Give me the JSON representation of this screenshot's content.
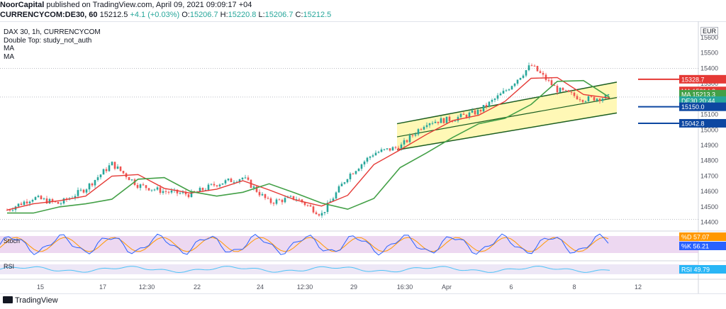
{
  "header": {
    "publisher": "NoorCapital",
    "published_text": "published on TradingView.com, April 09, 2021 09:09:17 +04",
    "symbol_line": "CURRENCYCOM:DE30, 60",
    "price": "15212.5",
    "change": "+4.1 (+0.03%)",
    "o_label": "O:",
    "o": "15206.7",
    "h_label": "H:",
    "h": "15220.8",
    "l_label": "L:",
    "l": "15206.7",
    "c_label": "C:",
    "c": "15212.5"
  },
  "legend": {
    "title": "DAX 30, 1h, CURRENCYCOM",
    "study": "Double Top: study_not_auth",
    "ma1": "MA",
    "ma2": "MA"
  },
  "currency": "EUR",
  "footer": {
    "brand": "TradingView"
  },
  "colors": {
    "up": "#26a69a",
    "down": "#ef5350",
    "ma_fast": "#e53935",
    "ma_slow": "#43a047",
    "channel_fill": "#fff59d",
    "channel_line": "#1b5e20",
    "level_red": "#e53935",
    "level_blue": "#0d47a1",
    "stoch_bg": "#e1bee7",
    "stoch_k": "#2962ff",
    "stoch_d": "#ff9800",
    "rsi_bg": "#ede7f6",
    "rsi_line": "#4fc3f7"
  },
  "chart_data": {
    "type": "candlestick",
    "title": "DAX 30, 1h, CURRENCYCOM",
    "y_axis": {
      "min": 14380,
      "max": 15650,
      "ticks": [
        "15600",
        "15500",
        "15400",
        "15300",
        "15200",
        "15100",
        "15000",
        "14900",
        "14800",
        "14700",
        "14600",
        "14500",
        "14400"
      ]
    },
    "x_axis": {
      "ticks": [
        "15",
        "17",
        "12:30",
        "22",
        "24",
        "12:30",
        "29",
        "16:30",
        "Apr",
        "6",
        "8",
        "12"
      ]
    },
    "price_points": [
      {
        "t": "15",
        "v": 14480
      },
      {
        "t": "16",
        "v": 14560
      },
      {
        "t": "17",
        "v": 14520
      },
      {
        "t": "18",
        "v": 14620
      },
      {
        "t": "19",
        "v": 14780
      },
      {
        "t": "20",
        "v": 14640
      },
      {
        "t": "21",
        "v": 14600
      },
      {
        "t": "22",
        "v": 14580
      },
      {
        "t": "23",
        "v": 14650
      },
      {
        "t": "24",
        "v": 14690
      },
      {
        "t": "25",
        "v": 14530
      },
      {
        "t": "26",
        "v": 14560
      },
      {
        "t": "27",
        "v": 14450
      },
      {
        "t": "28",
        "v": 14700
      },
      {
        "t": "29",
        "v": 14850
      },
      {
        "t": "30",
        "v": 14890
      },
      {
        "t": "31",
        "v": 15050
      },
      {
        "t": "Apr",
        "v": 15070
      },
      {
        "t": "2",
        "v": 15120
      },
      {
        "t": "3",
        "v": 15250
      },
      {
        "t": "6",
        "v": 15420
      },
      {
        "t": "7",
        "v": 15260
      },
      {
        "t": "8",
        "v": 15200
      },
      {
        "t": "9",
        "v": 15212.5
      }
    ],
    "levels": [
      {
        "label": "15328.7",
        "value": 15328.7,
        "kind": "resistance"
      },
      {
        "label": "15150.0",
        "value": 15150.0,
        "kind": "support"
      },
      {
        "label": "15042.8",
        "value": 15042.8,
        "kind": "support"
      }
    ],
    "price_tags": [
      {
        "name": "MA",
        "value": "15214.2"
      },
      {
        "name": "MA",
        "value": "15213.3"
      },
      {
        "name": "DE30",
        "value": "20:44"
      }
    ],
    "channel": "ascending",
    "indicators": {
      "stoch": {
        "label": "Stoch",
        "d_label": "%D",
        "d": "57.07",
        "k_label": "%K",
        "k": "56.21"
      },
      "rsi": {
        "label": "RSI",
        "value": "49.79"
      }
    }
  }
}
